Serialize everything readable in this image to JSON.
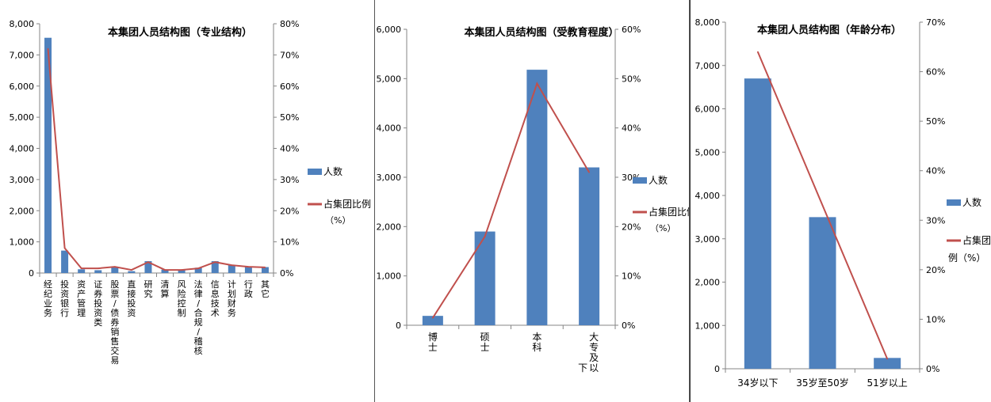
{
  "chart_data": [
    {
      "type": "bar",
      "title": "本集团人员结构图（专业结构）",
      "categories": [
        "经纪业务",
        "投资银行",
        "资产管理",
        "证券投资类",
        "股票/债券销售交易",
        "直接投资",
        "研究",
        "清算",
        "风险控制",
        "法律/合规/稽核",
        "信息技术",
        "计划财务",
        "行政",
        "其它"
      ],
      "series": [
        {
          "name": "人数",
          "kind": "bar",
          "axis": "left",
          "color": "#4f81bd",
          "values": [
            7550,
            720,
            120,
            90,
            200,
            60,
            380,
            110,
            110,
            170,
            380,
            260,
            200,
            190
          ]
        },
        {
          "name": "占集团比例（%）",
          "kind": "line",
          "axis": "right",
          "color": "#c0504d",
          "values": [
            72,
            8,
            1.5,
            1.5,
            2,
            1,
            3.5,
            1,
            1,
            1.5,
            3.5,
            2.5,
            2,
            1.8
          ]
        }
      ],
      "ylim": [
        0,
        8000
      ],
      "y2lim": [
        0,
        80
      ],
      "yticks": [
        "0",
        "1,000",
        "2,000",
        "3,000",
        "4,000",
        "5,000",
        "6,000",
        "7,000",
        "8,000"
      ],
      "y2ticks": [
        "0%",
        "10%",
        "20%",
        "30%",
        "40%",
        "50%",
        "60%",
        "70%",
        "80%"
      ],
      "grid": false,
      "legend": "right"
    },
    {
      "type": "bar",
      "title": "本集团人员结构图（受教育程度）",
      "categories": [
        "博士",
        "硕士",
        "本科",
        "大专及以下"
      ],
      "series": [
        {
          "name": "人数",
          "kind": "bar",
          "axis": "left",
          "color": "#4f81bd",
          "values": [
            190,
            1900,
            5180,
            3200
          ]
        },
        {
          "name": "占集团比例（%）",
          "kind": "line",
          "axis": "right",
          "color": "#c0504d",
          "values": [
            1.5,
            18,
            49,
            31
          ]
        }
      ],
      "ylim": [
        0,
        6000
      ],
      "y2lim": [
        0,
        60
      ],
      "yticks": [
        "0",
        "1,000",
        "2,000",
        "3,000",
        "4,000",
        "5,000",
        "6,000"
      ],
      "y2ticks": [
        "0%",
        "10%",
        "20%",
        "30%",
        "40%",
        "50%",
        "60%"
      ],
      "grid": false,
      "legend": "right"
    },
    {
      "type": "bar",
      "title": "本集团人员结构图（年龄分布）",
      "categories": [
        "34岁以下",
        "35岁至50岁",
        "51岁以上"
      ],
      "series": [
        {
          "name": "人数",
          "kind": "bar",
          "axis": "left",
          "color": "#4f81bd",
          "values": [
            6700,
            3500,
            250
          ]
        },
        {
          "name": "占集团比例（%）",
          "kind": "line",
          "axis": "right",
          "color": "#c0504d",
          "values": [
            64,
            33,
            2
          ]
        }
      ],
      "ylim": [
        0,
        8000
      ],
      "y2lim": [
        0,
        70
      ],
      "yticks": [
        "0",
        "1,000",
        "2,000",
        "3,000",
        "4,000",
        "5,000",
        "6,000",
        "7,000",
        "8,000"
      ],
      "y2ticks": [
        "0%",
        "10%",
        "20%",
        "30%",
        "40%",
        "50%",
        "60%",
        "70%"
      ],
      "grid": false,
      "legend": "right"
    }
  ]
}
